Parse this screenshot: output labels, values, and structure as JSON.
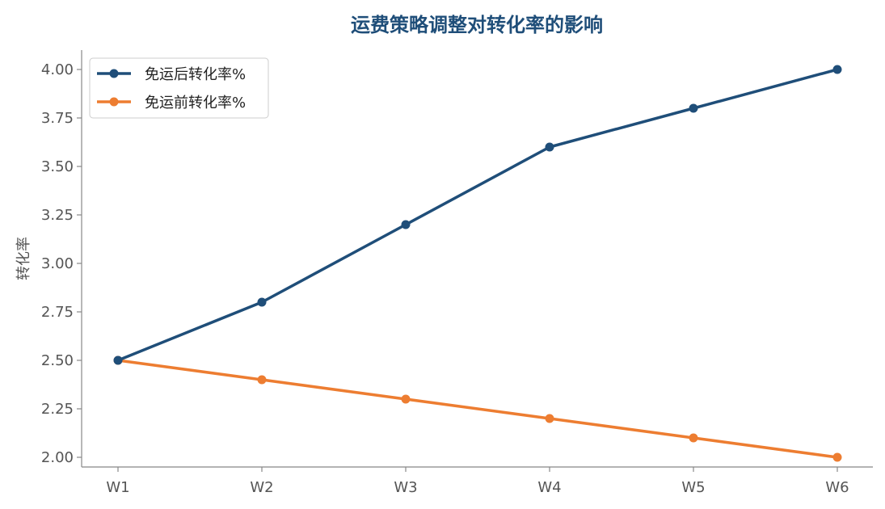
{
  "chart_data": {
    "type": "line",
    "title": "运费策略调整对转化率的影响",
    "xlabel": "",
    "ylabel": "转化率",
    "categories": [
      "W1",
      "W2",
      "W3",
      "W4",
      "W5",
      "W6"
    ],
    "ylim": [
      1.95,
      4.1
    ],
    "yticks": [
      "2.00",
      "2.25",
      "2.50",
      "2.75",
      "3.00",
      "3.25",
      "3.50",
      "3.75",
      "4.00"
    ],
    "grid": false,
    "legend_position": "top-left",
    "series": [
      {
        "name": "免运后转化率%",
        "color": "#1f4e79",
        "values": [
          2.5,
          2.8,
          3.2,
          3.6,
          3.8,
          4.0
        ]
      },
      {
        "name": "免运前转化率%",
        "color": "#ed7d31",
        "values": [
          2.5,
          2.4,
          2.3,
          2.2,
          2.1,
          2.0
        ]
      }
    ]
  }
}
